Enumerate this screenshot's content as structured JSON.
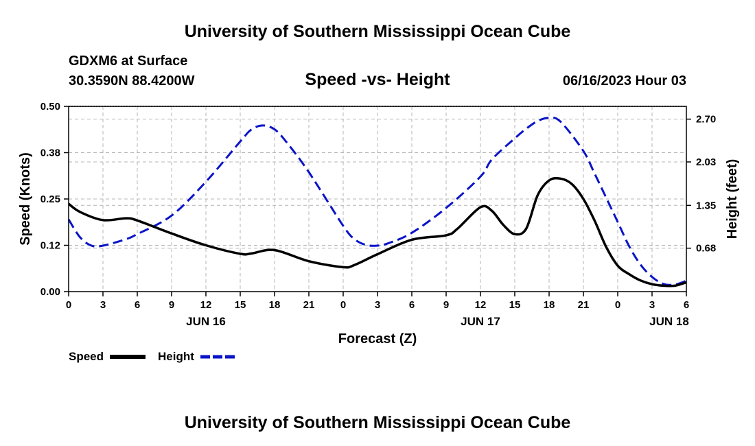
{
  "page": {
    "title_top": "University of Southern Mississippi Ocean Cube",
    "title_bottom": "University of Southern Mississippi Ocean Cube",
    "station": "GDXM6 at Surface",
    "coords": "30.3590N  88.4200W",
    "plot_title": "Speed -vs- Height",
    "datetime": "06/16/2023 Hour 03"
  },
  "colors": {
    "speed": "#000000",
    "height": "#0a14c8",
    "grid": "#b4b4b4"
  },
  "chart_data": {
    "type": "line",
    "title": "Speed -vs- Height",
    "xlabel": "Forecast (Z)",
    "ylabel_left": "Speed (Knots)",
    "ylabel_right": "Height (feet)",
    "x_range_hours": [
      0,
      54
    ],
    "x_ticks": [
      {
        "h": 0,
        "label": "0"
      },
      {
        "h": 3,
        "label": "3"
      },
      {
        "h": 6,
        "label": "6"
      },
      {
        "h": 9,
        "label": "9"
      },
      {
        "h": 12,
        "label": "12"
      },
      {
        "h": 15,
        "label": "15"
      },
      {
        "h": 18,
        "label": "18"
      },
      {
        "h": 21,
        "label": "21"
      },
      {
        "h": 24,
        "label": "0"
      },
      {
        "h": 27,
        "label": "3"
      },
      {
        "h": 30,
        "label": "6"
      },
      {
        "h": 33,
        "label": "9"
      },
      {
        "h": 36,
        "label": "12"
      },
      {
        "h": 39,
        "label": "15"
      },
      {
        "h": 42,
        "label": "18"
      },
      {
        "h": 45,
        "label": "21"
      },
      {
        "h": 48,
        "label": "0"
      },
      {
        "h": 51,
        "label": "3"
      },
      {
        "h": 54,
        "label": "6"
      }
    ],
    "day_labels": [
      {
        "h": 12,
        "label": "JUN 16"
      },
      {
        "h": 36,
        "label": "JUN 17"
      },
      {
        "h": 52.5,
        "label": "JUN 18"
      }
    ],
    "y_left": {
      "min": 0,
      "max": 0.5,
      "ticks": [
        {
          "v": 0.0,
          "label": "0.00"
        },
        {
          "v": 0.125,
          "label": "0.12"
        },
        {
          "v": 0.25,
          "label": "0.25"
        },
        {
          "v": 0.375,
          "label": "0.38"
        },
        {
          "v": 0.5,
          "label": "0.50"
        }
      ]
    },
    "y_right": {
      "min": 0.0,
      "max": 2.9,
      "ticks": [
        {
          "v": 0.68,
          "label": "0.68"
        },
        {
          "v": 1.35,
          "label": "1.35"
        },
        {
          "v": 2.03,
          "label": "2.03"
        },
        {
          "v": 2.7,
          "label": "2.70"
        }
      ]
    },
    "series": [
      {
        "name": "Speed",
        "axis": "left",
        "style": "solid",
        "points": [
          [
            0,
            0.237
          ],
          [
            1,
            0.215
          ],
          [
            3,
            0.193
          ],
          [
            5,
            0.198
          ],
          [
            6,
            0.192
          ],
          [
            9,
            0.157
          ],
          [
            12,
            0.125
          ],
          [
            15,
            0.102
          ],
          [
            16,
            0.103
          ],
          [
            18,
            0.112
          ],
          [
            21,
            0.082
          ],
          [
            24,
            0.066
          ],
          [
            25,
            0.072
          ],
          [
            27,
            0.101
          ],
          [
            30,
            0.14
          ],
          [
            33,
            0.152
          ],
          [
            34,
            0.17
          ],
          [
            36,
            0.228
          ],
          [
            37,
            0.218
          ],
          [
            38,
            0.18
          ],
          [
            39,
            0.155
          ],
          [
            40,
            0.17
          ],
          [
            41,
            0.26
          ],
          [
            42,
            0.3
          ],
          [
            43,
            0.305
          ],
          [
            44,
            0.29
          ],
          [
            45,
            0.25
          ],
          [
            46,
            0.19
          ],
          [
            47,
            0.12
          ],
          [
            48,
            0.07
          ],
          [
            49,
            0.047
          ],
          [
            50,
            0.03
          ],
          [
            51,
            0.02
          ],
          [
            52,
            0.016
          ],
          [
            53,
            0.016
          ],
          [
            54,
            0.025
          ]
        ]
      },
      {
        "name": "Height",
        "axis": "right",
        "style": "dashed",
        "points": [
          [
            0,
            1.13
          ],
          [
            1,
            0.85
          ],
          [
            2,
            0.72
          ],
          [
            3,
            0.72
          ],
          [
            5,
            0.82
          ],
          [
            6,
            0.9
          ],
          [
            9,
            1.19
          ],
          [
            12,
            1.72
          ],
          [
            15,
            2.35
          ],
          [
            16,
            2.54
          ],
          [
            17,
            2.6
          ],
          [
            18,
            2.54
          ],
          [
            19,
            2.35
          ],
          [
            21,
            1.87
          ],
          [
            24,
            1.03
          ],
          [
            25,
            0.82
          ],
          [
            26,
            0.73
          ],
          [
            27,
            0.72
          ],
          [
            28,
            0.76
          ],
          [
            30,
            0.92
          ],
          [
            33,
            1.31
          ],
          [
            36,
            1.8
          ],
          [
            37,
            2.07
          ],
          [
            39,
            2.4
          ],
          [
            40,
            2.55
          ],
          [
            41,
            2.67
          ],
          [
            42,
            2.72
          ],
          [
            43,
            2.66
          ],
          [
            45,
            2.2
          ],
          [
            46,
            1.84
          ],
          [
            48,
            1.09
          ],
          [
            49,
            0.71
          ],
          [
            50,
            0.42
          ],
          [
            51,
            0.23
          ],
          [
            52,
            0.12
          ],
          [
            53,
            0.11
          ],
          [
            54,
            0.17
          ]
        ]
      }
    ],
    "legend": [
      {
        "label": "Speed",
        "style": "solid"
      },
      {
        "label": "Height",
        "style": "dashed"
      }
    ]
  }
}
